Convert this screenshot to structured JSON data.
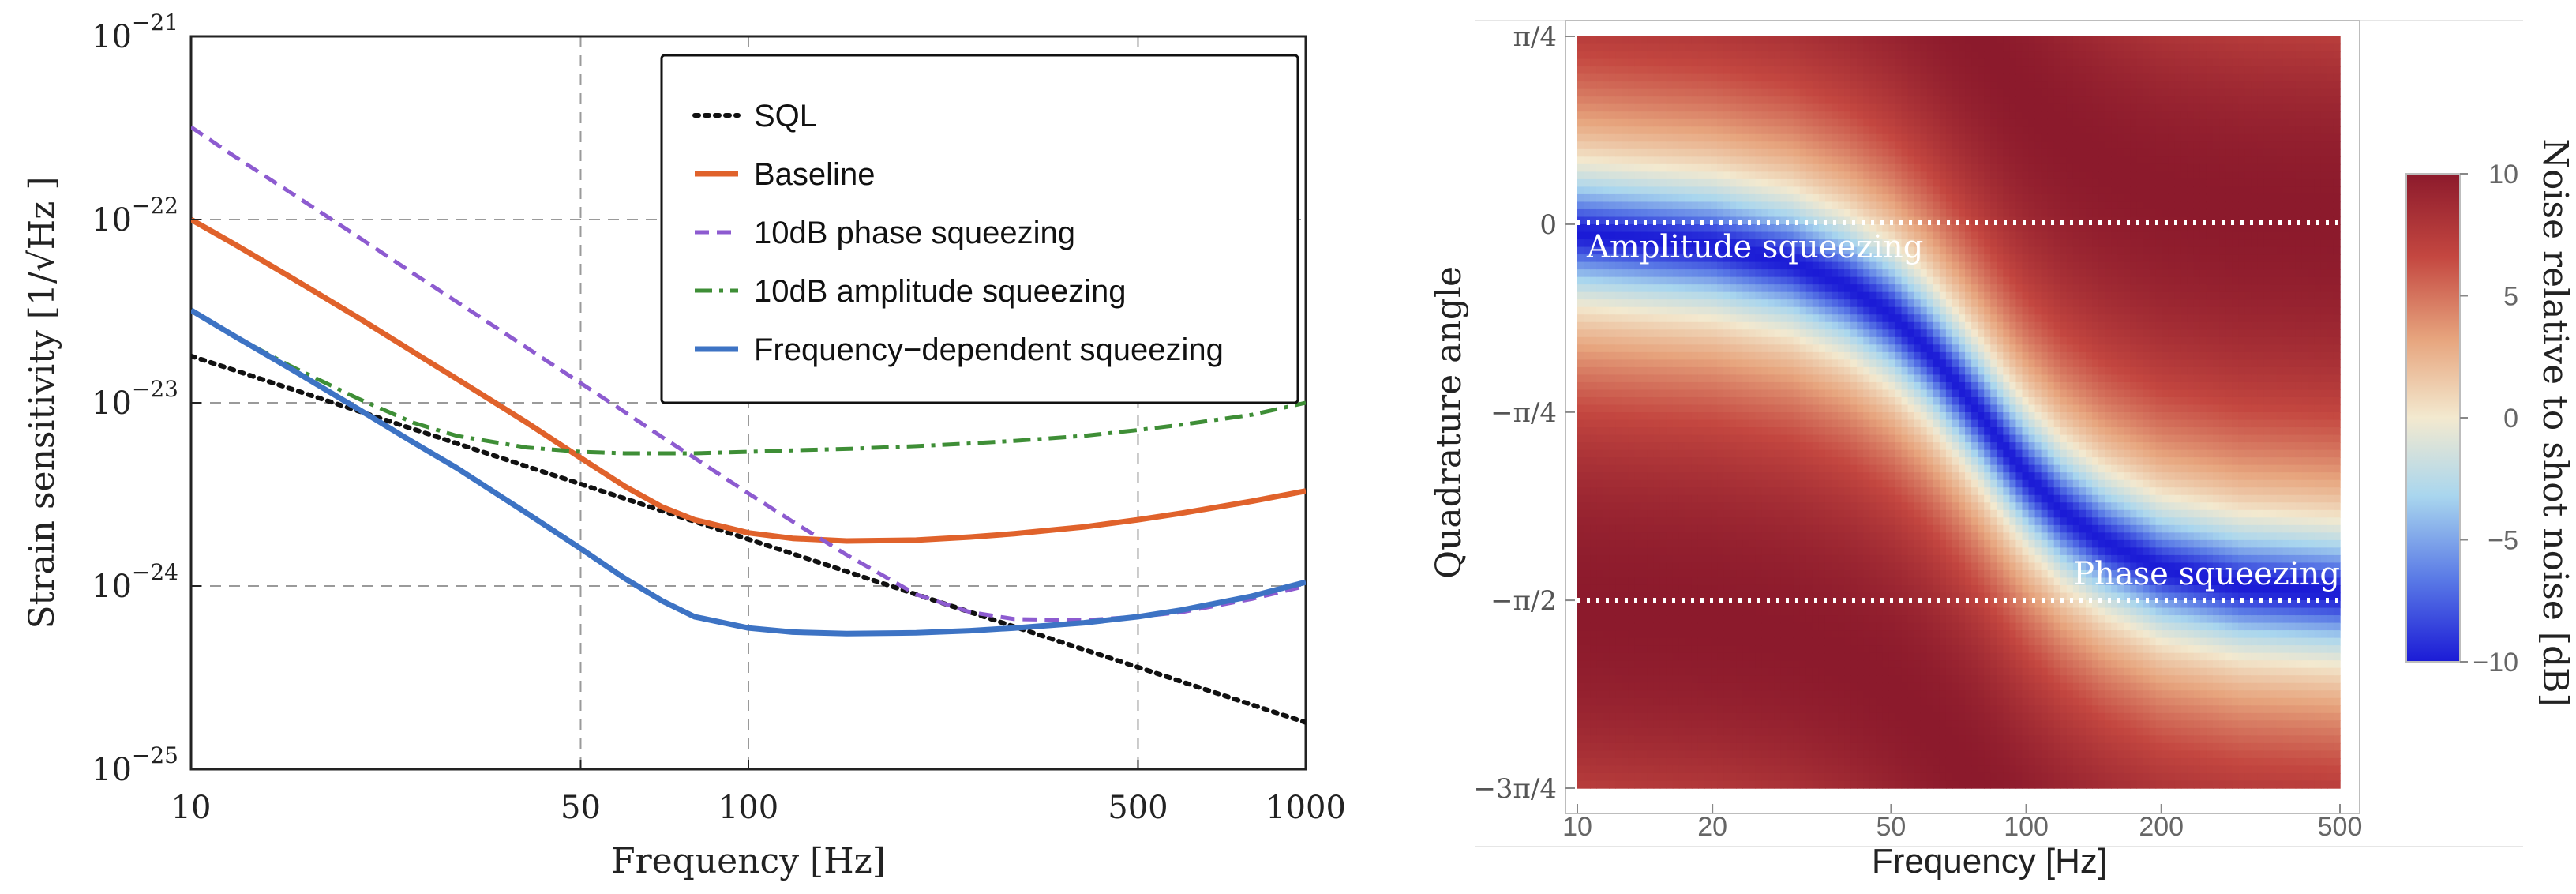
{
  "chart_data": [
    {
      "type": "line",
      "title": "",
      "xlabel": "Frequency [Hz]",
      "ylabel": "Strain sensitivity [1/√Hz ]",
      "xscale": "log",
      "yscale": "log",
      "xlim": [
        10,
        1000
      ],
      "ylim": [
        1e-25,
        1e-21
      ],
      "grid": "dashed, at x = 50, 100, 500 and y = 1e-24, 1e-23, 1e-22",
      "x_ticks": [
        {
          "value": 10,
          "label": "10"
        },
        {
          "value": 50,
          "label": "50"
        },
        {
          "value": 100,
          "label": "100"
        },
        {
          "value": 500,
          "label": "500"
        },
        {
          "value": 1000,
          "label": "1000"
        }
      ],
      "y_ticks": [
        {
          "value": 1e-25,
          "base": "10",
          "exp": "−25"
        },
        {
          "value": 1e-24,
          "base": "10",
          "exp": "−24"
        },
        {
          "value": 1e-23,
          "base": "10",
          "exp": "−23"
        },
        {
          "value": 1e-22,
          "base": "10",
          "exp": "−22"
        },
        {
          "value": 1e-21,
          "base": "10",
          "exp": "−21"
        }
      ],
      "legend_position": "top-right",
      "x": [
        10,
        12,
        15,
        20,
        25,
        30,
        40,
        50,
        60,
        70,
        80,
        100,
        120,
        150,
        200,
        250,
        300,
        400,
        500,
        600,
        800,
        1000
      ],
      "series": [
        {
          "name": "SQL",
          "color": "#111111",
          "style": "dotted",
          "values": [
            1.8e-23,
            1.5e-23,
            1.2e-23,
            9e-24,
            7.2e-24,
            6e-24,
            4.5e-24,
            3.6e-24,
            3e-24,
            2.57e-24,
            2.25e-24,
            1.8e-24,
            1.5e-24,
            1.2e-24,
            9e-25,
            7.2e-25,
            6e-25,
            4.5e-25,
            3.6e-25,
            3e-25,
            2.25e-25,
            1.8e-25
          ]
        },
        {
          "name": "Baseline",
          "color": "#E0622B",
          "style": "solid",
          "values": [
            1e-22,
            7.3e-23,
            4.9e-23,
            2.9e-23,
            1.9e-23,
            1.35e-23,
            7.8e-24,
            5e-24,
            3.5e-24,
            2.7e-24,
            2.3e-24,
            1.95e-24,
            1.82e-24,
            1.76e-24,
            1.78e-24,
            1.85e-24,
            1.93e-24,
            2.1e-24,
            2.3e-24,
            2.5e-24,
            2.9e-24,
            3.3e-24
          ]
        },
        {
          "name": "10dB phase squeezing",
          "color": "#8D5BD0",
          "style": "dashed",
          "values": [
            3.2e-22,
            2.2e-22,
            1.42e-22,
            8e-23,
            5.1e-23,
            3.55e-23,
            2e-23,
            1.28e-23,
            8.9e-24,
            6.5e-24,
            5e-24,
            3.2e-24,
            2.25e-24,
            1.48e-24,
            9e-25,
            7.2e-25,
            6.6e-25,
            6.5e-25,
            6.8e-25,
            7.2e-25,
            8.5e-25,
            1e-24
          ]
        },
        {
          "name": "10dB amplitude squeezing",
          "color": "#3E8E36",
          "style": "dash-dot",
          "values": [
            3.2e-23,
            2.3e-23,
            1.6e-23,
            1.05e-23,
            7.8e-24,
            6.6e-24,
            5.7e-24,
            5.4e-24,
            5.3e-24,
            5.3e-24,
            5.3e-24,
            5.4e-24,
            5.5e-24,
            5.6e-24,
            5.8e-24,
            6e-24,
            6.2e-24,
            6.6e-24,
            7.1e-24,
            7.6e-24,
            8.6e-24,
            1e-23
          ]
        },
        {
          "name": "Frequency−dependent squeezing",
          "color": "#3D73C4",
          "style": "solid",
          "values": [
            3.2e-23,
            2.3e-23,
            1.55e-23,
            9.2e-24,
            6.1e-24,
            4.4e-24,
            2.5e-24,
            1.6e-24,
            1.1e-24,
            8.3e-25,
            6.8e-25,
            5.9e-25,
            5.6e-25,
            5.5e-25,
            5.55e-25,
            5.7e-25,
            5.9e-25,
            6.3e-25,
            6.8e-25,
            7.4e-25,
            8.8e-25,
            1.05e-24
          ]
        }
      ]
    },
    {
      "type": "heatmap",
      "title": "",
      "xlabel": "Frequency [Hz]",
      "ylabel": "Quadrature angle",
      "xscale": "log",
      "xlim": [
        10,
        500
      ],
      "ylim_radians": [
        -2.356,
        0.785
      ],
      "x_ticks": [
        {
          "value": 10,
          "label": "10"
        },
        {
          "value": 20,
          "label": "20"
        },
        {
          "value": 50,
          "label": "50"
        },
        {
          "value": 100,
          "label": "100"
        },
        {
          "value": 200,
          "label": "200"
        },
        {
          "value": 500,
          "label": "500"
        }
      ],
      "y_ticks": [
        {
          "value": 0.785,
          "label": "π/4"
        },
        {
          "value": 0,
          "label": "0"
        },
        {
          "value": -0.785,
          "label": "−π/4"
        },
        {
          "value": -1.571,
          "label": "−π/2"
        },
        {
          "value": -2.356,
          "label": "−3π/4"
        }
      ],
      "optimal_angle_curve": {
        "description": "angle of minimum noise versus frequency (dark blue band)",
        "frequency": [
          10,
          20,
          30,
          40,
          50,
          60,
          70,
          80,
          90,
          100,
          120,
          150,
          200,
          300,
          500
        ],
        "angle_rad": [
          -0.04,
          -0.09,
          -0.16,
          -0.26,
          -0.38,
          -0.52,
          -0.67,
          -0.81,
          -0.94,
          -1.05,
          -1.2,
          -1.33,
          -1.44,
          -1.51,
          -1.54
        ]
      },
      "reference_lines": [
        {
          "angle_rad": 0,
          "style": "white dotted",
          "label": "Amplitude squeezing"
        },
        {
          "angle_rad": -1.571,
          "style": "white dotted",
          "label": "Phase squeezing"
        }
      ],
      "colorbar": {
        "label": "Noise relative to shot noise [dB]",
        "min": -10,
        "max": 10,
        "ticks": [
          {
            "value": 10,
            "label": "10"
          },
          {
            "value": 5,
            "label": "5"
          },
          {
            "value": 0,
            "label": "0"
          },
          {
            "value": -5,
            "label": "−5"
          },
          {
            "value": -10,
            "label": "−10"
          }
        ],
        "colors": [
          "#1b1bd6",
          "#5a7ae6",
          "#a9d6ee",
          "#f3e9cf",
          "#e7a57e",
          "#c44740",
          "#8c1a2c"
        ]
      }
    }
  ]
}
